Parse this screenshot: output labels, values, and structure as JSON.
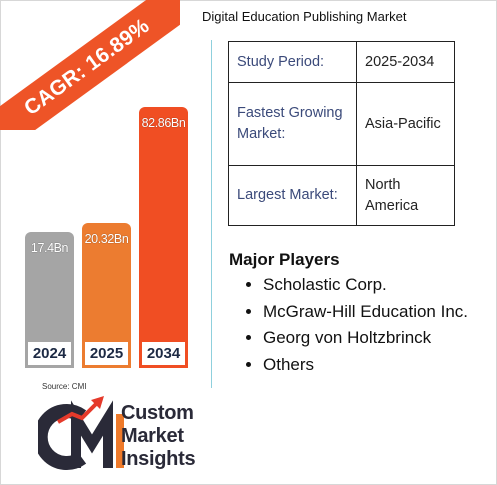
{
  "title": "Digital Education Publishing Market",
  "cagr_ribbon": "CAGR: 16.89%",
  "chart_data": {
    "type": "bar",
    "categories": [
      "2024",
      "2025",
      "2034"
    ],
    "values": [
      17.4,
      20.32,
      82.86
    ],
    "value_labels": [
      "17.4Bn",
      "20.32Bn",
      "82.86Bn"
    ],
    "bar_colors": [
      "#a5a5a5",
      "#ec7c30",
      "#f04e23"
    ]
  },
  "info_table": [
    {
      "key": "Study Period:",
      "value": "2025-2034"
    },
    {
      "key": "Fastest Growing Market:",
      "value": "Asia-Pacific"
    },
    {
      "key": "Largest Market:",
      "value": "North America"
    }
  ],
  "major_players": {
    "heading": "Major Players",
    "items": [
      "Scholastic Corp.",
      "McGraw-Hill Education Inc.",
      "Georg von Holtzbrinck",
      "Others"
    ]
  },
  "source": "Source: CMI",
  "logo": {
    "line1": "Custom",
    "line2": "Market",
    "line3": "Insights",
    "initials": "CMI"
  },
  "colors": {
    "accent": "#ee5427",
    "navy": "#2a2a38",
    "label": "#3b4a7a",
    "divider": "#8fd0dd"
  }
}
